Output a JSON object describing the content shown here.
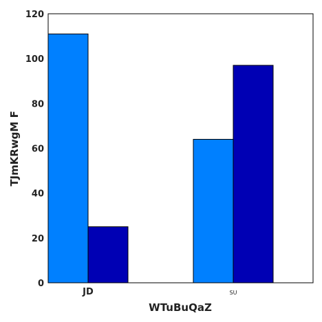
{
  "chart_data": {
    "type": "bar",
    "categories": [
      "JD",
      "SU"
    ],
    "series": [
      {
        "values": [
          111,
          64
        ],
        "color": "#0080ff"
      },
      {
        "values": [
          25,
          97
        ],
        "color": "#0000b4"
      }
    ],
    "xlabel": "WTuBuQaZ",
    "ylabel": "TJmKRwgM F",
    "ylim": [
      0,
      120
    ],
    "yticks": [
      0,
      20,
      40,
      60,
      80,
      100,
      120
    ],
    "grid": false,
    "legend": "none"
  }
}
